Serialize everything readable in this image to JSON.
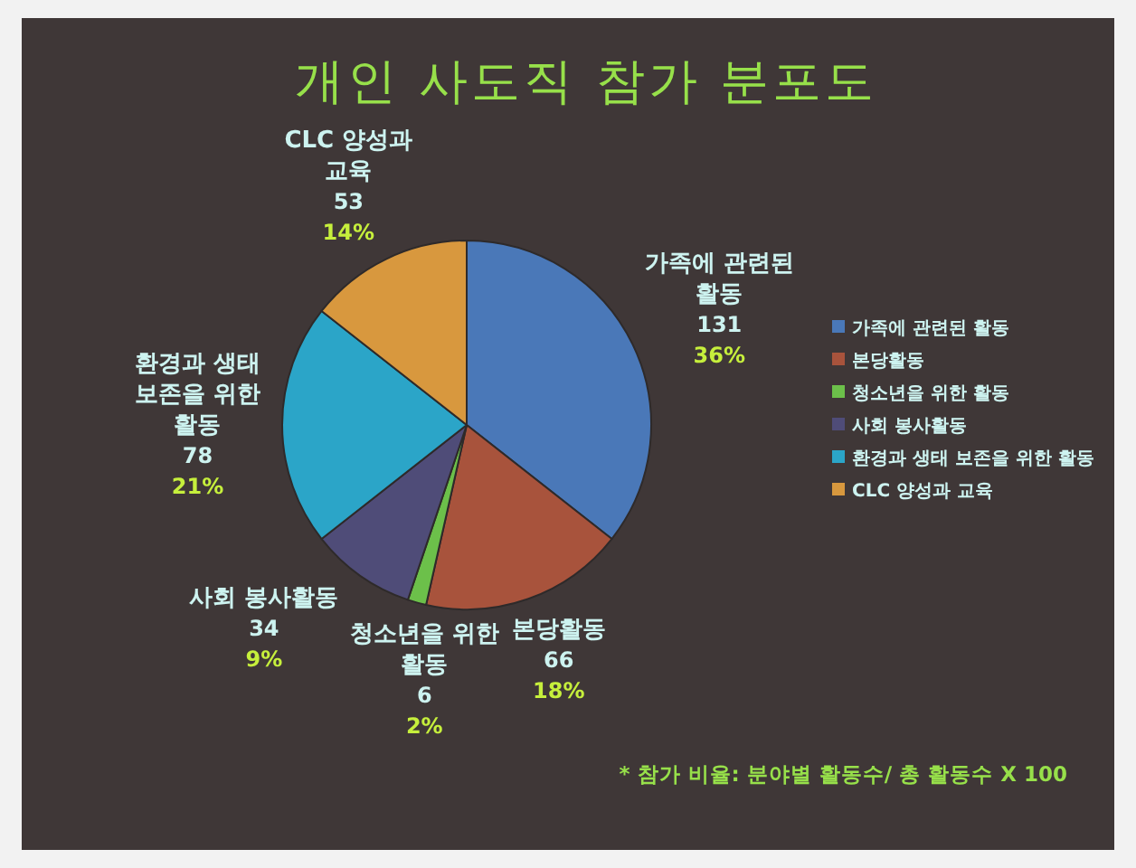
{
  "chart_data": {
    "type": "pie",
    "title": "개인 사도직 참가 분포도",
    "categories": [
      "가족에 관련된 활동",
      "본당활동",
      "청소년을 위한 활동",
      "사회 봉사활동",
      "환경과 생태 보존을 위한 활동",
      "CLC 양성과 교육"
    ],
    "values": [
      131,
      66,
      6,
      34,
      78,
      53
    ],
    "colors": [
      "#4a78b8",
      "#a8533c",
      "#6cc04a",
      "#4f4c78",
      "#2ba5c8",
      "#d8983e"
    ],
    "value_labels": [
      "131\n36%",
      "66\n18%",
      "6\n2%",
      "34\n9%",
      "78\n21%",
      "53\n14%"
    ],
    "legend": "right",
    "annotations": [
      "* 참가 비율: 분야별 활동수/ 총 활동수 X 100"
    ]
  }
}
